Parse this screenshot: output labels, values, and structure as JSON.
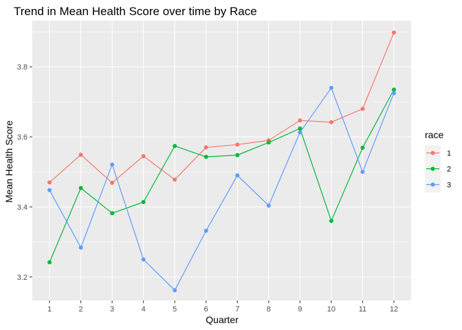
{
  "chart_data": {
    "type": "line",
    "title": "Trend in Mean Health Score over time by Race",
    "xlabel": "Quarter",
    "ylabel": "Mean Health Score",
    "x": [
      1,
      2,
      3,
      4,
      5,
      6,
      7,
      8,
      9,
      10,
      11,
      12
    ],
    "x_ticks": [
      "1",
      "2",
      "3",
      "4",
      "5",
      "6",
      "7",
      "8",
      "9",
      "10",
      "11",
      "12"
    ],
    "y_ticks": [
      "3.2",
      "3.4",
      "3.6",
      "3.8"
    ],
    "xlim": [
      0.45,
      12.55
    ],
    "ylim": [
      3.133,
      3.932
    ],
    "grid": true,
    "legend": {
      "title": "race",
      "placement": "right"
    },
    "series": [
      {
        "name": "1",
        "color": "#F8766D",
        "values": [
          3.47,
          3.549,
          3.469,
          3.545,
          3.478,
          3.57,
          3.578,
          3.59,
          3.647,
          3.642,
          3.68,
          3.898
        ]
      },
      {
        "name": "2",
        "color": "#00BA38",
        "values": [
          3.242,
          3.454,
          3.382,
          3.414,
          3.574,
          3.543,
          3.548,
          3.584,
          3.624,
          3.36,
          3.569,
          3.735
        ]
      },
      {
        "name": "3",
        "color": "#619CFF",
        "values": [
          3.448,
          3.284,
          3.521,
          3.25,
          3.162,
          3.332,
          3.49,
          3.404,
          3.613,
          3.74,
          3.5,
          3.725
        ]
      }
    ]
  }
}
